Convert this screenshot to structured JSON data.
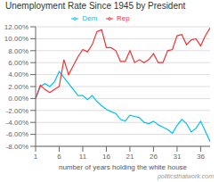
{
  "chart_data": {
    "type": "line",
    "title": "Unemployment Rate Since 1945 by President",
    "xlabel": "number of years holding the white house",
    "x": [
      1,
      2,
      3,
      4,
      5,
      6,
      7,
      8,
      9,
      10,
      11,
      12,
      13,
      14,
      15,
      16,
      17,
      18,
      19,
      20,
      21,
      22,
      23,
      24,
      25,
      26,
      27,
      28,
      29,
      30,
      31,
      32,
      33,
      34,
      35,
      36,
      37,
      38
    ],
    "series": [
      {
        "name": "Dem",
        "color": "#00c0f0",
        "values": [
          0.0,
          0.02,
          0.025,
          0.02,
          0.028,
          0.045,
          0.035,
          0.025,
          0.015,
          0.005,
          0.005,
          -0.002,
          0.005,
          -0.005,
          -0.012,
          -0.018,
          -0.022,
          -0.025,
          -0.035,
          -0.038,
          -0.028,
          -0.03,
          -0.032,
          -0.04,
          -0.042,
          -0.038,
          -0.044,
          -0.048,
          -0.052,
          -0.058,
          -0.045,
          -0.035,
          -0.042,
          -0.056,
          -0.05,
          -0.038,
          -0.055,
          -0.072
        ]
      },
      {
        "name": "Rep",
        "color": "#ee3333",
        "values": [
          0.0,
          0.022,
          0.015,
          0.01,
          0.015,
          0.02,
          0.065,
          0.04,
          0.055,
          0.07,
          0.082,
          0.078,
          0.09,
          0.112,
          0.115,
          0.085,
          0.085,
          0.08,
          0.062,
          0.062,
          0.08,
          0.06,
          0.065,
          0.06,
          0.065,
          0.075,
          0.06,
          0.06,
          0.08,
          0.082,
          0.105,
          0.107,
          0.09,
          0.098,
          0.1,
          0.088,
          0.105,
          0.118
        ]
      }
    ],
    "xlim": [
      1,
      38
    ],
    "xticks": [
      1,
      6,
      11,
      16,
      21,
      26,
      31,
      36
    ],
    "ylim": [
      -0.08,
      0.12
    ],
    "yticks": [
      {
        "value": -0.08,
        "label": "-8.00%"
      },
      {
        "value": -0.06,
        "label": "-6.00%"
      },
      {
        "value": -0.04,
        "label": "-4.00%"
      },
      {
        "value": -0.02,
        "label": "-2.00%"
      },
      {
        "value": 0.0,
        "label": "0.00%"
      },
      {
        "value": 0.02,
        "label": "2.00%"
      },
      {
        "value": 0.04,
        "label": "4.00%"
      },
      {
        "value": 0.06,
        "label": "6.00%"
      },
      {
        "value": 0.08,
        "label": "8.00%"
      },
      {
        "value": 0.1,
        "label": "10.00%"
      },
      {
        "value": 0.12,
        "label": "12.00%"
      }
    ],
    "grid": "y",
    "legend": "top",
    "annotations": [
      "politicsthatwork.com"
    ]
  }
}
